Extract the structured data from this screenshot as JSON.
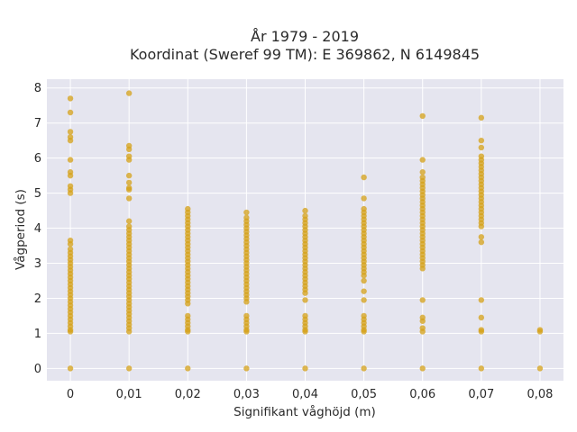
{
  "chart_data": {
    "type": "scatter",
    "title": [
      "År 1979 - 2019",
      "Koordinat (Sweref 99 TM): E 369862, N 6149845"
    ],
    "xlabel": "Signifikant våghöjd (m)",
    "ylabel": "Vågperiod (s)",
    "xlim": [
      -0.004,
      0.084
    ],
    "ylim": [
      -0.35,
      8.25
    ],
    "x_ticks": [
      {
        "value": 0,
        "label": "0"
      },
      {
        "value": 0.01,
        "label": "0,01"
      },
      {
        "value": 0.02,
        "label": "0,02"
      },
      {
        "value": 0.03,
        "label": "0,03"
      },
      {
        "value": 0.04,
        "label": "0,04"
      },
      {
        "value": 0.05,
        "label": "0,05"
      },
      {
        "value": 0.06,
        "label": "0,06"
      },
      {
        "value": 0.07,
        "label": "0,07"
      },
      {
        "value": 0.08,
        "label": "0,08"
      }
    ],
    "y_ticks": [
      {
        "value": 0,
        "label": "0"
      },
      {
        "value": 1,
        "label": "1"
      },
      {
        "value": 2,
        "label": "2"
      },
      {
        "value": 3,
        "label": "3"
      },
      {
        "value": 4,
        "label": "4"
      },
      {
        "value": 5,
        "label": "5"
      },
      {
        "value": 6,
        "label": "6"
      },
      {
        "value": 7,
        "label": "7"
      },
      {
        "value": 8,
        "label": "8"
      }
    ],
    "grid": true,
    "colors": {
      "point": "#d4a017",
      "background": "#e5e5ef",
      "grid": "#ffffff"
    },
    "series": [
      {
        "points": [
          [
            0,
            0
          ],
          [
            0,
            1.05
          ],
          [
            0,
            1.1
          ],
          [
            0,
            1.2
          ],
          [
            0,
            1.3
          ],
          [
            0,
            1.4
          ],
          [
            0,
            1.5
          ],
          [
            0,
            1.6
          ],
          [
            0,
            1.7
          ],
          [
            0,
            1.8
          ],
          [
            0,
            1.9
          ],
          [
            0,
            2.0
          ],
          [
            0,
            2.1
          ],
          [
            0,
            2.2
          ],
          [
            0,
            2.3
          ],
          [
            0,
            2.4
          ],
          [
            0,
            2.5
          ],
          [
            0,
            2.6
          ],
          [
            0,
            2.7
          ],
          [
            0,
            2.8
          ],
          [
            0,
            2.9
          ],
          [
            0,
            3.0
          ],
          [
            0,
            3.1
          ],
          [
            0,
            3.2
          ],
          [
            0,
            3.3
          ],
          [
            0,
            3.4
          ],
          [
            0,
            3.55
          ],
          [
            0,
            3.65
          ],
          [
            0,
            5.0
          ],
          [
            0,
            5.1
          ],
          [
            0,
            5.2
          ],
          [
            0,
            5.5
          ],
          [
            0,
            5.6
          ],
          [
            0,
            5.95
          ],
          [
            0,
            6.5
          ],
          [
            0,
            6.6
          ],
          [
            0,
            6.75
          ],
          [
            0,
            7.3
          ],
          [
            0,
            7.7
          ],
          [
            0.01,
            0
          ],
          [
            0.01,
            1.05
          ],
          [
            0.01,
            1.15
          ],
          [
            0.01,
            1.25
          ],
          [
            0.01,
            1.35
          ],
          [
            0.01,
            1.45
          ],
          [
            0.01,
            1.55
          ],
          [
            0.01,
            1.65
          ],
          [
            0.01,
            1.75
          ],
          [
            0.01,
            1.85
          ],
          [
            0.01,
            1.95
          ],
          [
            0.01,
            2.05
          ],
          [
            0.01,
            2.15
          ],
          [
            0.01,
            2.25
          ],
          [
            0.01,
            2.35
          ],
          [
            0.01,
            2.45
          ],
          [
            0.01,
            2.55
          ],
          [
            0.01,
            2.65
          ],
          [
            0.01,
            2.75
          ],
          [
            0.01,
            2.85
          ],
          [
            0.01,
            2.95
          ],
          [
            0.01,
            3.05
          ],
          [
            0.01,
            3.15
          ],
          [
            0.01,
            3.25
          ],
          [
            0.01,
            3.35
          ],
          [
            0.01,
            3.45
          ],
          [
            0.01,
            3.55
          ],
          [
            0.01,
            3.65
          ],
          [
            0.01,
            3.75
          ],
          [
            0.01,
            3.85
          ],
          [
            0.01,
            3.95
          ],
          [
            0.01,
            4.05
          ],
          [
            0.01,
            4.2
          ],
          [
            0.01,
            4.85
          ],
          [
            0.01,
            5.1
          ],
          [
            0.01,
            5.15
          ],
          [
            0.01,
            5.3
          ],
          [
            0.01,
            5.5
          ],
          [
            0.01,
            5.95
          ],
          [
            0.01,
            6.05
          ],
          [
            0.01,
            6.25
          ],
          [
            0.01,
            6.35
          ],
          [
            0.01,
            7.85
          ],
          [
            0.02,
            0
          ],
          [
            0.02,
            1.05
          ],
          [
            0.02,
            1.1
          ],
          [
            0.02,
            1.2
          ],
          [
            0.02,
            1.3
          ],
          [
            0.02,
            1.4
          ],
          [
            0.02,
            1.5
          ],
          [
            0.02,
            1.85
          ],
          [
            0.02,
            1.95
          ],
          [
            0.02,
            2.05
          ],
          [
            0.02,
            2.15
          ],
          [
            0.02,
            2.25
          ],
          [
            0.02,
            2.35
          ],
          [
            0.02,
            2.45
          ],
          [
            0.02,
            2.55
          ],
          [
            0.02,
            2.65
          ],
          [
            0.02,
            2.75
          ],
          [
            0.02,
            2.85
          ],
          [
            0.02,
            2.95
          ],
          [
            0.02,
            3.05
          ],
          [
            0.02,
            3.15
          ],
          [
            0.02,
            3.25
          ],
          [
            0.02,
            3.35
          ],
          [
            0.02,
            3.45
          ],
          [
            0.02,
            3.55
          ],
          [
            0.02,
            3.65
          ],
          [
            0.02,
            3.75
          ],
          [
            0.02,
            3.85
          ],
          [
            0.02,
            3.95
          ],
          [
            0.02,
            4.05
          ],
          [
            0.02,
            4.15
          ],
          [
            0.02,
            4.25
          ],
          [
            0.02,
            4.35
          ],
          [
            0.02,
            4.45
          ],
          [
            0.02,
            4.55
          ],
          [
            0.03,
            0
          ],
          [
            0.03,
            1.05
          ],
          [
            0.03,
            1.1
          ],
          [
            0.03,
            1.2
          ],
          [
            0.03,
            1.3
          ],
          [
            0.03,
            1.4
          ],
          [
            0.03,
            1.5
          ],
          [
            0.03,
            1.9
          ],
          [
            0.03,
            2.0
          ],
          [
            0.03,
            2.1
          ],
          [
            0.03,
            2.2
          ],
          [
            0.03,
            2.3
          ],
          [
            0.03,
            2.4
          ],
          [
            0.03,
            2.5
          ],
          [
            0.03,
            2.6
          ],
          [
            0.03,
            2.7
          ],
          [
            0.03,
            2.8
          ],
          [
            0.03,
            2.9
          ],
          [
            0.03,
            3.0
          ],
          [
            0.03,
            3.1
          ],
          [
            0.03,
            3.2
          ],
          [
            0.03,
            3.3
          ],
          [
            0.03,
            3.4
          ],
          [
            0.03,
            3.5
          ],
          [
            0.03,
            3.6
          ],
          [
            0.03,
            3.7
          ],
          [
            0.03,
            3.8
          ],
          [
            0.03,
            3.9
          ],
          [
            0.03,
            4.0
          ],
          [
            0.03,
            4.1
          ],
          [
            0.03,
            4.2
          ],
          [
            0.03,
            4.3
          ],
          [
            0.03,
            4.45
          ],
          [
            0.04,
            0
          ],
          [
            0.04,
            1.05
          ],
          [
            0.04,
            1.1
          ],
          [
            0.04,
            1.2
          ],
          [
            0.04,
            1.3
          ],
          [
            0.04,
            1.4
          ],
          [
            0.04,
            1.5
          ],
          [
            0.04,
            1.95
          ],
          [
            0.04,
            2.15
          ],
          [
            0.04,
            2.25
          ],
          [
            0.04,
            2.35
          ],
          [
            0.04,
            2.45
          ],
          [
            0.04,
            2.55
          ],
          [
            0.04,
            2.65
          ],
          [
            0.04,
            2.75
          ],
          [
            0.04,
            2.85
          ],
          [
            0.04,
            2.95
          ],
          [
            0.04,
            3.05
          ],
          [
            0.04,
            3.15
          ],
          [
            0.04,
            3.25
          ],
          [
            0.04,
            3.35
          ],
          [
            0.04,
            3.45
          ],
          [
            0.04,
            3.55
          ],
          [
            0.04,
            3.65
          ],
          [
            0.04,
            3.75
          ],
          [
            0.04,
            3.85
          ],
          [
            0.04,
            3.95
          ],
          [
            0.04,
            4.05
          ],
          [
            0.04,
            4.15
          ],
          [
            0.04,
            4.25
          ],
          [
            0.04,
            4.35
          ],
          [
            0.04,
            4.5
          ],
          [
            0.05,
            0
          ],
          [
            0.05,
            1.05
          ],
          [
            0.05,
            1.1
          ],
          [
            0.05,
            1.2
          ],
          [
            0.05,
            1.3
          ],
          [
            0.05,
            1.4
          ],
          [
            0.05,
            1.5
          ],
          [
            0.05,
            1.95
          ],
          [
            0.05,
            2.2
          ],
          [
            0.05,
            2.5
          ],
          [
            0.05,
            2.65
          ],
          [
            0.05,
            2.75
          ],
          [
            0.05,
            2.85
          ],
          [
            0.05,
            2.95
          ],
          [
            0.05,
            3.05
          ],
          [
            0.05,
            3.15
          ],
          [
            0.05,
            3.25
          ],
          [
            0.05,
            3.35
          ],
          [
            0.05,
            3.45
          ],
          [
            0.05,
            3.55
          ],
          [
            0.05,
            3.65
          ],
          [
            0.05,
            3.75
          ],
          [
            0.05,
            3.85
          ],
          [
            0.05,
            3.95
          ],
          [
            0.05,
            4.05
          ],
          [
            0.05,
            4.15
          ],
          [
            0.05,
            4.25
          ],
          [
            0.05,
            4.35
          ],
          [
            0.05,
            4.45
          ],
          [
            0.05,
            4.55
          ],
          [
            0.05,
            4.85
          ],
          [
            0.05,
            5.45
          ],
          [
            0.06,
            0
          ],
          [
            0.06,
            1.05
          ],
          [
            0.06,
            1.15
          ],
          [
            0.06,
            1.35
          ],
          [
            0.06,
            1.45
          ],
          [
            0.06,
            1.95
          ],
          [
            0.06,
            2.85
          ],
          [
            0.06,
            2.95
          ],
          [
            0.06,
            3.05
          ],
          [
            0.06,
            3.15
          ],
          [
            0.06,
            3.25
          ],
          [
            0.06,
            3.35
          ],
          [
            0.06,
            3.45
          ],
          [
            0.06,
            3.55
          ],
          [
            0.06,
            3.65
          ],
          [
            0.06,
            3.75
          ],
          [
            0.06,
            3.85
          ],
          [
            0.06,
            3.95
          ],
          [
            0.06,
            4.05
          ],
          [
            0.06,
            4.15
          ],
          [
            0.06,
            4.25
          ],
          [
            0.06,
            4.35
          ],
          [
            0.06,
            4.45
          ],
          [
            0.06,
            4.55
          ],
          [
            0.06,
            4.65
          ],
          [
            0.06,
            4.75
          ],
          [
            0.06,
            4.85
          ],
          [
            0.06,
            4.95
          ],
          [
            0.06,
            5.05
          ],
          [
            0.06,
            5.15
          ],
          [
            0.06,
            5.25
          ],
          [
            0.06,
            5.35
          ],
          [
            0.06,
            5.45
          ],
          [
            0.06,
            5.6
          ],
          [
            0.06,
            5.95
          ],
          [
            0.06,
            7.2
          ],
          [
            0.07,
            0
          ],
          [
            0.07,
            1.05
          ],
          [
            0.07,
            1.1
          ],
          [
            0.07,
            1.45
          ],
          [
            0.07,
            1.95
          ],
          [
            0.07,
            3.6
          ],
          [
            0.07,
            3.75
          ],
          [
            0.07,
            4.05
          ],
          [
            0.07,
            4.15
          ],
          [
            0.07,
            4.25
          ],
          [
            0.07,
            4.35
          ],
          [
            0.07,
            4.45
          ],
          [
            0.07,
            4.55
          ],
          [
            0.07,
            4.65
          ],
          [
            0.07,
            4.75
          ],
          [
            0.07,
            4.85
          ],
          [
            0.07,
            4.95
          ],
          [
            0.07,
            5.05
          ],
          [
            0.07,
            5.15
          ],
          [
            0.07,
            5.25
          ],
          [
            0.07,
            5.35
          ],
          [
            0.07,
            5.45
          ],
          [
            0.07,
            5.55
          ],
          [
            0.07,
            5.65
          ],
          [
            0.07,
            5.75
          ],
          [
            0.07,
            5.85
          ],
          [
            0.07,
            5.95
          ],
          [
            0.07,
            6.05
          ],
          [
            0.07,
            6.3
          ],
          [
            0.07,
            6.5
          ],
          [
            0.07,
            7.15
          ],
          [
            0.08,
            0
          ],
          [
            0.08,
            1.05
          ],
          [
            0.08,
            1.1
          ]
        ]
      }
    ]
  }
}
